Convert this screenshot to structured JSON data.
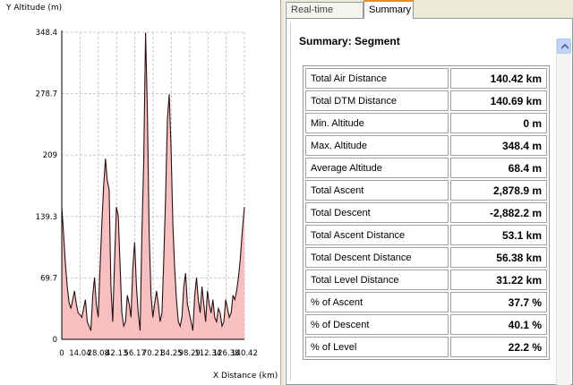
{
  "chart": {
    "y_axis_title": "Y Altitude (m)",
    "x_axis_title": "X Distance (km)"
  },
  "chart_data": {
    "type": "area",
    "xlabel": "X Distance (km)",
    "ylabel": "Y Altitude (m)",
    "xlim": [
      0,
      140.42
    ],
    "ylim": [
      0,
      348.4
    ],
    "grid": true,
    "y_ticks": [
      "0",
      "69.7",
      "139.3",
      "209",
      "278.7",
      "348.4"
    ],
    "x_ticks": [
      "0",
      "14.04",
      "28.08",
      "42.13",
      "56.17",
      "70.21",
      "84.25",
      "98.29",
      "112.34",
      "126.38",
      "140.42"
    ],
    "fill_color": "#f7c0c0",
    "line_color": "#2a1010",
    "x": [
      0,
      1.4,
      2.8,
      4.2,
      5.6,
      7.0,
      8.4,
      9.8,
      11.2,
      12.6,
      14.0,
      15.4,
      16.8,
      18.2,
      19.6,
      21.0,
      22.4,
      23.8,
      25.2,
      26.6,
      28.0,
      29.4,
      30.8,
      32.2,
      33.6,
      35.0,
      36.4,
      37.8,
      39.2,
      40.6,
      42.0,
      43.4,
      44.8,
      46.2,
      47.6,
      49.0,
      50.4,
      51.8,
      53.2,
      54.6,
      56.0,
      57.4,
      58.8,
      60.2,
      61.6,
      63.0,
      64.4,
      65.8,
      67.2,
      68.6,
      70.0,
      71.4,
      72.8,
      74.2,
      75.6,
      77.0,
      78.4,
      79.8,
      81.2,
      82.6,
      84.0,
      85.4,
      86.8,
      88.2,
      89.6,
      91.0,
      92.4,
      93.8,
      95.2,
      96.6,
      98.0,
      99.4,
      100.8,
      102.2,
      103.6,
      105.0,
      106.4,
      107.8,
      109.2,
      110.6,
      112.0,
      113.4,
      114.8,
      116.2,
      117.6,
      119.0,
      120.4,
      121.8,
      123.2,
      124.6,
      126.0,
      127.4,
      128.8,
      130.2,
      131.6,
      133.0,
      134.4,
      135.8,
      137.2,
      138.6,
      140.42
    ],
    "y": [
      150,
      120,
      85,
      60,
      42,
      35,
      45,
      55,
      40,
      30,
      28,
      25,
      35,
      45,
      20,
      15,
      10,
      50,
      70,
      40,
      25,
      80,
      130,
      175,
      205,
      180,
      170,
      60,
      20,
      90,
      150,
      140,
      85,
      30,
      15,
      20,
      50,
      40,
      25,
      80,
      110,
      60,
      30,
      10,
      120,
      200,
      348,
      260,
      120,
      50,
      25,
      40,
      55,
      40,
      20,
      30,
      90,
      160,
      250,
      278,
      220,
      130,
      80,
      45,
      20,
      15,
      25,
      60,
      75,
      40,
      30,
      20,
      10,
      50,
      70,
      45,
      30,
      60,
      40,
      20,
      55,
      40,
      30,
      45,
      25,
      20,
      35,
      30,
      15,
      20,
      45,
      35,
      25,
      30,
      50,
      45,
      55,
      70,
      90,
      120,
      150
    ]
  },
  "tabs": [
    {
      "label": "Real-time Profile",
      "active": false
    },
    {
      "label": "Summary",
      "active": true
    }
  ],
  "summary": {
    "title": "Summary: Segment",
    "rows": [
      {
        "label": "Total Air Distance",
        "value": "140.42 km"
      },
      {
        "label": "Total DTM Distance",
        "value": "140.69 km"
      },
      {
        "label": "Min. Altitude",
        "value": "0 m"
      },
      {
        "label": "Max. Altitude",
        "value": "348.4 m"
      },
      {
        "label": "Average Altitude",
        "value": "68.4 m"
      },
      {
        "label": "Total Ascent",
        "value": "2,878.9 m"
      },
      {
        "label": "Total Descent",
        "value": "-2,882.2 m"
      },
      {
        "label": "Total Ascent Distance",
        "value": "53.1 km"
      },
      {
        "label": "Total Descent Distance",
        "value": "56.38 km"
      },
      {
        "label": "Total Level Distance",
        "value": "31.22 km"
      },
      {
        "label": "% of Ascent",
        "value": "37.7 %"
      },
      {
        "label": "% of Descent",
        "value": "40.1 %"
      },
      {
        "label": "% of Level",
        "value": "22.2 %"
      }
    ]
  }
}
